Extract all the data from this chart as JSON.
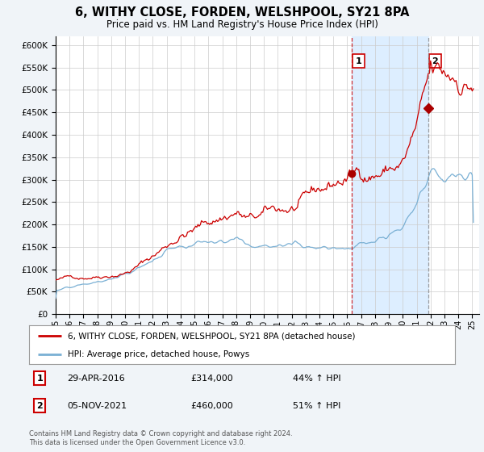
{
  "title": "6, WITHY CLOSE, FORDEN, WELSHPOOL, SY21 8PA",
  "subtitle": "Price paid vs. HM Land Registry's House Price Index (HPI)",
  "ylim": [
    0,
    620000
  ],
  "yticks": [
    0,
    50000,
    100000,
    150000,
    200000,
    250000,
    300000,
    350000,
    400000,
    450000,
    500000,
    550000,
    600000
  ],
  "x_start_year": 1995,
  "x_end_year": 2025,
  "red_line_color": "#cc0000",
  "blue_line_color": "#7ab0d4",
  "dashed_line_color_1": "#cc0000",
  "dashed_line_color_2": "#888888",
  "shade_color": "#ddeeff",
  "sale1_year": 2016.33,
  "sale1_price": 314000,
  "sale2_year": 2021.85,
  "sale2_price": 460000,
  "legend_label_red": "6, WITHY CLOSE, FORDEN, WELSHPOOL, SY21 8PA (detached house)",
  "legend_label_blue": "HPI: Average price, detached house, Powys",
  "table_data": [
    {
      "num": "1",
      "date": "29-APR-2016",
      "price": "£314,000",
      "change": "44% ↑ HPI"
    },
    {
      "num": "2",
      "date": "05-NOV-2021",
      "price": "£460,000",
      "change": "51% ↑ HPI"
    }
  ],
  "footer": "Contains HM Land Registry data © Crown copyright and database right 2024.\nThis data is licensed under the Open Government Licence v3.0.",
  "background_color": "#f0f4f8",
  "plot_bg_color": "#ffffff"
}
